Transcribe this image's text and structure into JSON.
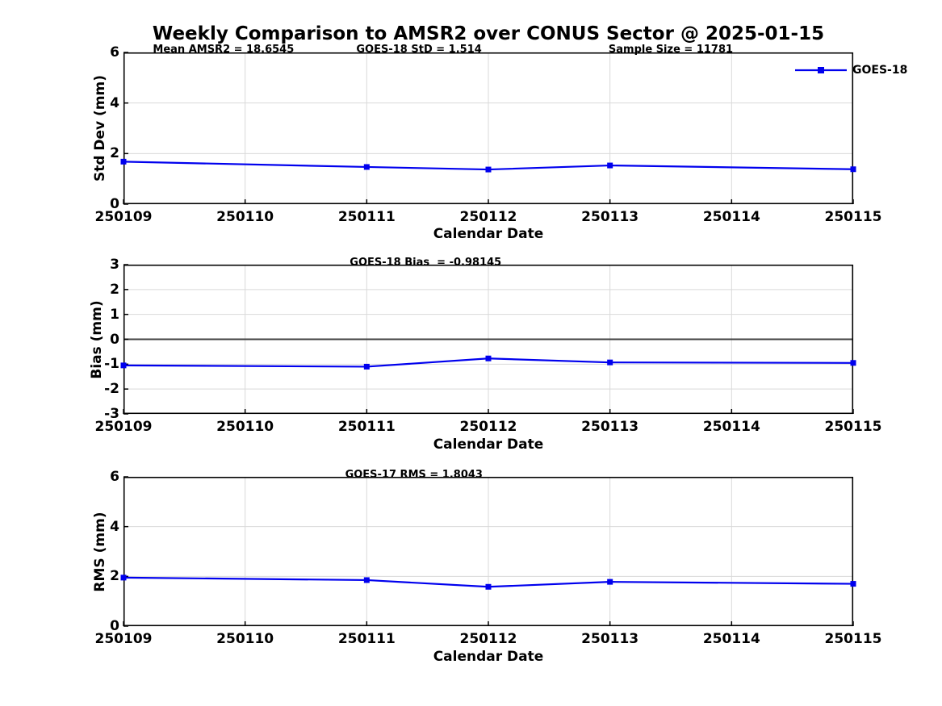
{
  "page_title": "Weekly Comparison to AMSR2 over CONUS Sector @ 2025-01-15",
  "colors": {
    "line": "#0000ee",
    "grid": "#d9d9d9",
    "zero_line": "#404040",
    "spine": "#000000",
    "text": "#000000",
    "background": "#ffffff"
  },
  "legend": {
    "label": "GOES-18",
    "position": "top-right",
    "marker": "square"
  },
  "chart_data": [
    {
      "type": "line",
      "panel": "std-dev",
      "ylabel": "Std Dev (mm)",
      "xlabel": "Calendar Date",
      "categories": [
        "250109",
        "250110",
        "250111",
        "250112",
        "250113",
        "250114",
        "250115"
      ],
      "ylim": [
        0,
        6
      ],
      "yticks": [
        0,
        2,
        4,
        6
      ],
      "grid": true,
      "zero_line": false,
      "annotations": [
        "Mean AMSR2 = 18.6545",
        "GOES-18 StD = 1.514",
        "Sample Size = 11781"
      ],
      "series": [
        {
          "name": "GOES-18",
          "marker": "square",
          "x": [
            "250109",
            "250111",
            "250112",
            "250113",
            "250115"
          ],
          "values": [
            1.68,
            1.47,
            1.37,
            1.53,
            1.38
          ]
        }
      ]
    },
    {
      "type": "line",
      "panel": "bias",
      "ylabel": "Bias (mm)",
      "xlabel": "Calendar Date",
      "categories": [
        "250109",
        "250110",
        "250111",
        "250112",
        "250113",
        "250114",
        "250115"
      ],
      "ylim": [
        -3,
        3
      ],
      "yticks": [
        -3,
        -2,
        -1,
        0,
        1,
        2,
        3
      ],
      "grid": true,
      "zero_line": true,
      "annotations": [
        "GOES-18 Bias  = -0.98145"
      ],
      "series": [
        {
          "name": "GOES-18",
          "marker": "square",
          "x": [
            "250109",
            "250111",
            "250112",
            "250113",
            "250115"
          ],
          "values": [
            -1.05,
            -1.1,
            -0.77,
            -0.93,
            -0.95
          ]
        }
      ]
    },
    {
      "type": "line",
      "panel": "rms",
      "ylabel": "RMS (mm)",
      "xlabel": "Calendar Date",
      "categories": [
        "250109",
        "250110",
        "250111",
        "250112",
        "250113",
        "250114",
        "250115"
      ],
      "ylim": [
        0,
        6
      ],
      "yticks": [
        0,
        2,
        4,
        6
      ],
      "grid": true,
      "zero_line": false,
      "annotations": [
        "GOES-17 RMS = 1.8043"
      ],
      "series": [
        {
          "name": "GOES-18",
          "marker": "square",
          "x": [
            "250109",
            "250111",
            "250112",
            "250113",
            "250115"
          ],
          "values": [
            1.95,
            1.85,
            1.58,
            1.78,
            1.7
          ]
        }
      ]
    }
  ]
}
